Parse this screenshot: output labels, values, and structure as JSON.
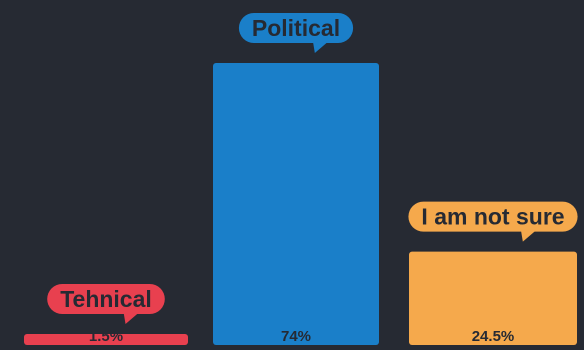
{
  "chart_data": {
    "type": "bar",
    "categories": [
      "Tehnical",
      "Political",
      "I am not sure"
    ],
    "values": [
      1.5,
      74,
      24.5
    ],
    "value_labels": [
      "1.5%",
      "74%",
      "24.5%"
    ],
    "colors": [
      "#e8404f",
      "#1a7fc9",
      "#f5a94c"
    ],
    "label_text_color": "#262a33",
    "background": "#262a33",
    "ylim": [
      0,
      74
    ],
    "grid": false,
    "legend": "none"
  }
}
